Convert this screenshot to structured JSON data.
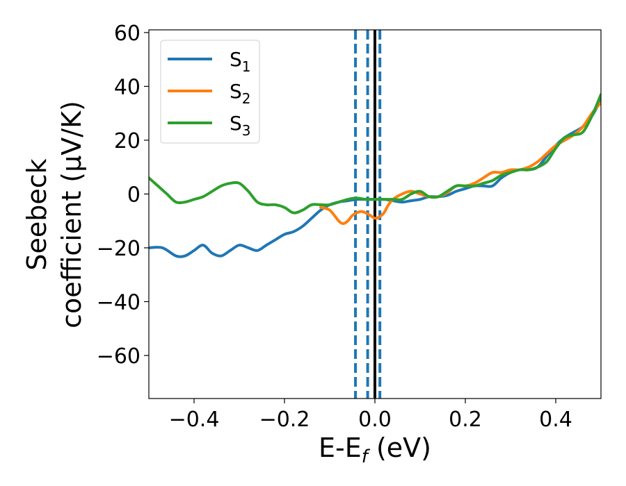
{
  "chart_data": {
    "type": "line",
    "xlabel": "E-E",
    "xlabel_sub": "f",
    "xlabel_unit": "(eV)",
    "ylabel_line1": "Seebeck",
    "ylabel_line2": "coefficient  (μV/K)",
    "xlim": [
      -0.5,
      0.5
    ],
    "ylim": [
      -76,
      61
    ],
    "xticks": [
      -0.4,
      -0.2,
      0.0,
      0.2,
      0.4
    ],
    "xtick_labels": [
      "−0.4",
      "−0.2",
      "0.0",
      "0.2",
      "0.4"
    ],
    "yticks": [
      60,
      40,
      20,
      0,
      -20,
      -40,
      -60
    ],
    "ytick_labels": [
      "60",
      "40",
      "20",
      "0",
      "−20",
      "−40",
      "−60"
    ],
    "legend_position": "top-left",
    "vlines": [
      {
        "x": -0.043,
        "style": "dashed",
        "color": "#1f77b4"
      },
      {
        "x": -0.016,
        "style": "dashed",
        "color": "#1f77b4"
      },
      {
        "x": 0.0,
        "style": "solid",
        "color": "#000000"
      },
      {
        "x": 0.011,
        "style": "dashed",
        "color": "#1f77b4"
      }
    ],
    "series": [
      {
        "name": "S",
        "sub": "1",
        "color": "#1f77b4",
        "x": [
          -0.5,
          -0.47,
          -0.44,
          -0.42,
          -0.4,
          -0.38,
          -0.36,
          -0.34,
          -0.32,
          -0.3,
          -0.28,
          -0.26,
          -0.24,
          -0.22,
          -0.2,
          -0.18,
          -0.16,
          -0.14,
          -0.12,
          -0.1,
          -0.08,
          -0.06,
          -0.04,
          -0.02,
          0.0,
          0.02,
          0.04,
          0.06,
          0.08,
          0.1,
          0.12,
          0.14,
          0.16,
          0.18,
          0.2,
          0.22,
          0.24,
          0.26,
          0.28,
          0.3,
          0.32,
          0.34,
          0.36,
          0.38,
          0.4,
          0.42,
          0.44,
          0.46,
          0.48,
          0.5
        ],
        "values": [
          -20,
          -20,
          -23,
          -23,
          -21,
          -19,
          -22,
          -23,
          -21,
          -19,
          -20,
          -21,
          -19,
          -17,
          -15,
          -14,
          -12,
          -9,
          -6,
          -4,
          -3,
          -2.5,
          -2,
          -2,
          -2,
          -2,
          -2.5,
          -3,
          -2.5,
          -2,
          -1,
          -1,
          -0.5,
          1,
          2,
          3,
          3,
          3,
          6,
          8,
          9,
          9,
          10,
          14,
          18,
          21,
          23,
          25,
          29,
          35
        ]
      },
      {
        "name": "S",
        "sub": "2",
        "color": "#ff7f0e",
        "x": [
          -0.12,
          -0.1,
          -0.08,
          -0.07,
          -0.06,
          -0.05,
          -0.04,
          -0.03,
          -0.02,
          -0.01,
          0.0,
          0.01,
          0.02,
          0.03,
          0.04,
          0.06,
          0.08,
          0.1,
          0.12,
          0.14,
          0.16,
          0.18,
          0.2,
          0.22,
          0.24,
          0.26,
          0.28,
          0.3,
          0.32,
          0.34,
          0.36,
          0.38,
          0.4,
          0.42,
          0.44,
          0.46,
          0.48,
          0.5
        ],
        "values": [
          -5,
          -6,
          -10,
          -11,
          -10,
          -8,
          -7,
          -6.5,
          -7,
          -8,
          -9,
          -8.5,
          -7,
          -4,
          -2,
          0,
          1,
          0,
          -1,
          -1,
          0.5,
          3,
          3,
          4,
          6,
          8,
          8,
          9,
          9,
          10,
          12,
          15,
          18,
          20,
          22,
          25,
          30,
          34
        ]
      },
      {
        "name": "S",
        "sub": "3",
        "color": "#2ca02c",
        "x": [
          -0.5,
          -0.48,
          -0.46,
          -0.44,
          -0.42,
          -0.4,
          -0.38,
          -0.36,
          -0.34,
          -0.32,
          -0.3,
          -0.28,
          -0.26,
          -0.24,
          -0.22,
          -0.2,
          -0.18,
          -0.16,
          -0.14,
          -0.12,
          -0.1,
          -0.08,
          -0.06,
          -0.04,
          -0.02,
          0.0,
          0.02,
          0.04,
          0.06,
          0.08,
          0.1,
          0.12,
          0.14,
          0.16,
          0.18,
          0.2,
          0.22,
          0.24,
          0.26,
          0.28,
          0.3,
          0.32,
          0.34,
          0.36,
          0.38,
          0.4,
          0.42,
          0.44,
          0.46,
          0.48,
          0.5
        ],
        "values": [
          6,
          3,
          0,
          -3,
          -3,
          -2,
          -1,
          1,
          3,
          4,
          4,
          1,
          -3,
          -4,
          -4,
          -5,
          -7,
          -6,
          -4,
          -4,
          -4,
          -3,
          -2,
          -1.5,
          -2,
          -2,
          -2,
          -2,
          -2,
          0,
          1,
          -1,
          -1,
          1,
          3,
          3,
          3,
          4,
          5,
          7,
          8,
          9,
          9,
          10,
          12,
          17,
          21,
          22,
          23,
          29,
          37
        ]
      }
    ]
  }
}
